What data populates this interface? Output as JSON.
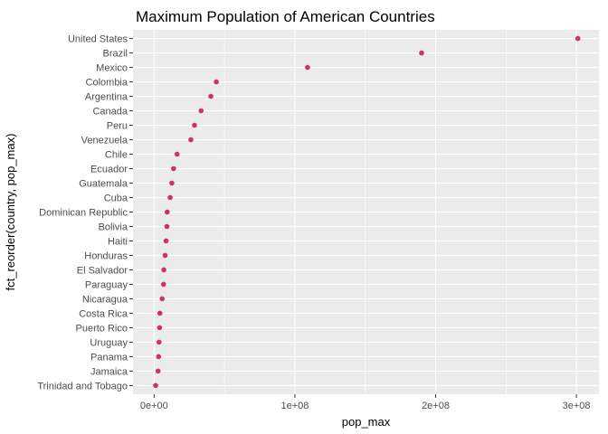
{
  "chart_data": {
    "type": "scatter",
    "title": "Maximum Population of American Countries",
    "xlabel": "pop_max",
    "ylabel": "fct_reorder(country, pop_max)",
    "xlim": [
      -15000000,
      316000000
    ],
    "x_ticks": [
      0,
      100000000,
      200000000,
      300000000
    ],
    "x_tick_labels": [
      "0e+00",
      "1e+08",
      "2e+08",
      "3e+08"
    ],
    "grid": true,
    "point_color": "#cc3366",
    "panel_background": "#ebebeb",
    "gridline_color": "#ffffff",
    "categories": [
      "United States",
      "Brazil",
      "Mexico",
      "Colombia",
      "Argentina",
      "Canada",
      "Peru",
      "Venezuela",
      "Chile",
      "Ecuador",
      "Guatemala",
      "Cuba",
      "Dominican Republic",
      "Bolivia",
      "Haiti",
      "Honduras",
      "El Salvador",
      "Paraguay",
      "Nicaragua",
      "Costa Rica",
      "Puerto Rico",
      "Uruguay",
      "Panama",
      "Jamaica",
      "Trinidad and Tobago"
    ],
    "values": [
      301000000,
      190000000,
      109000000,
      44200000,
      40300000,
      33400000,
      28700000,
      26100000,
      16300000,
      13800000,
      12600000,
      11400000,
      9300000,
      9100000,
      8500000,
      7800000,
      6900000,
      6700000,
      5700000,
      4100000,
      3900000,
      3500000,
      3200000,
      2800000,
      1100000
    ]
  }
}
